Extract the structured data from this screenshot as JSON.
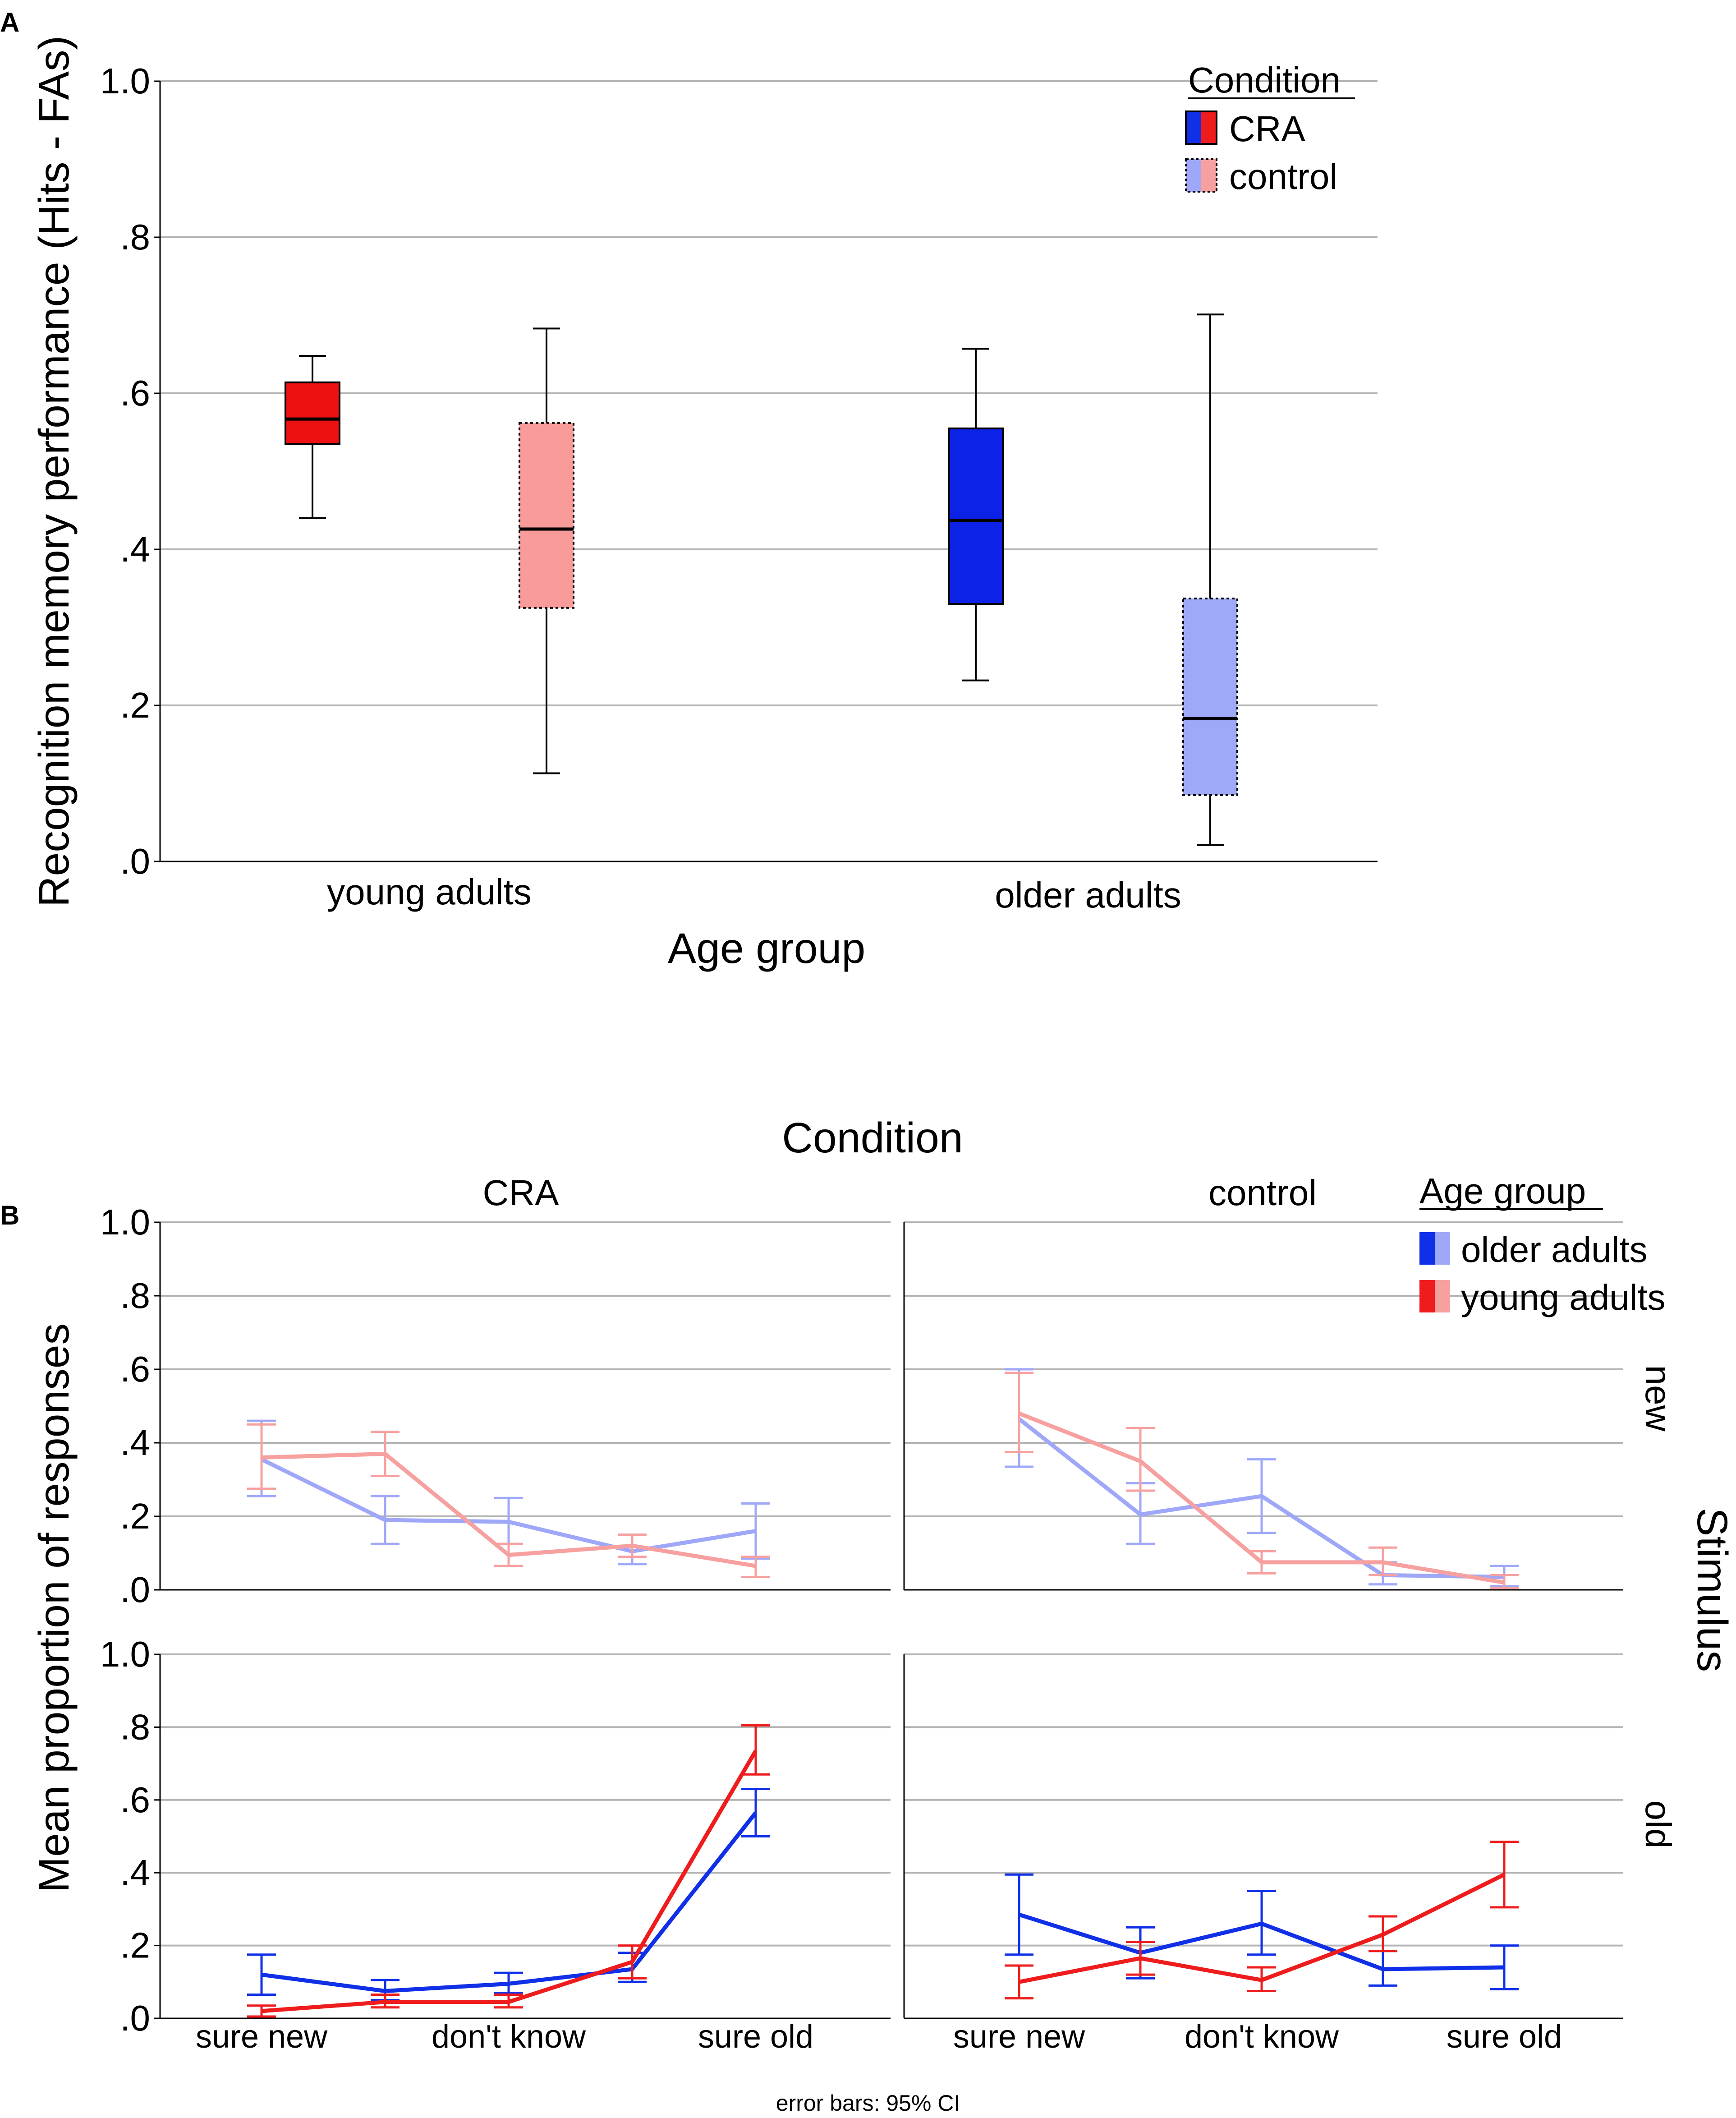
{
  "chart_data": [
    {
      "panel": "A",
      "type": "boxplot",
      "ylabel": "Recognition memory performance (Hits - FAs)",
      "xlabel": "Age group",
      "ylim": [
        0,
        1
      ],
      "yticks": [
        0,
        0.2,
        0.4,
        0.6,
        0.8,
        1.0
      ],
      "ytick_labels": [
        ".0",
        ".2",
        ".4",
        ".6",
        ".8",
        "1.0"
      ],
      "categories": [
        "young adults",
        "older adults"
      ],
      "legend": {
        "title": "Condition",
        "items": [
          {
            "label": "CRA",
            "colors": [
              "#1030e8",
              "#ee1c1c"
            ],
            "style": "solid"
          },
          {
            "label": "control",
            "colors": [
              "#9fa8f8",
              "#f7a0a0"
            ],
            "style": "dotted"
          }
        ]
      },
      "boxes": [
        {
          "group": "young adults",
          "condition": "CRA",
          "color": "#ee1111",
          "style": "solid",
          "min": 0.44,
          "q1": 0.535,
          "median": 0.567,
          "q3": 0.614,
          "max": 0.648
        },
        {
          "group": "young adults",
          "condition": "control",
          "color": "#f99b9b",
          "style": "dotted",
          "min": 0.113,
          "q1": 0.325,
          "median": 0.426,
          "q3": 0.562,
          "max": 0.683
        },
        {
          "group": "older adults",
          "condition": "CRA",
          "color": "#0c22e6",
          "style": "solid",
          "min": 0.232,
          "q1": 0.33,
          "median": 0.437,
          "q3": 0.555,
          "max": 0.657
        },
        {
          "group": "older adults",
          "condition": "control",
          "color": "#9ea9f7",
          "style": "dotted",
          "min": 0.021,
          "q1": 0.085,
          "median": 0.183,
          "q3": 0.337,
          "max": 0.701
        }
      ]
    },
    {
      "panel": "B",
      "type": "line",
      "column_title": "Condition",
      "row_title": "Stimulus",
      "ylabel": "Mean proportion of responses",
      "ylim": [
        0,
        1
      ],
      "yticks": [
        0,
        0.2,
        0.4,
        0.6,
        0.8,
        1.0
      ],
      "ytick_labels": [
        ".0",
        ".2",
        ".4",
        ".6",
        ".8",
        "1.0"
      ],
      "x": [
        "sure new",
        "",
        "don't know",
        "",
        "sure old"
      ],
      "x_tick_labels": [
        "sure new",
        "don't know",
        "sure old"
      ],
      "legend": {
        "title": "Age group",
        "items": [
          {
            "label": "older adults",
            "colors": [
              "#1030e8",
              "#9fa8f8"
            ]
          },
          {
            "label": "young adults",
            "colors": [
              "#ee1c1c",
              "#f7a0a0"
            ]
          }
        ]
      },
      "footnote": "error bars: 95% CI",
      "panels": [
        {
          "condition": "CRA",
          "stimulus": "new",
          "series": [
            {
              "name": "older adults",
              "color": "#9fa8f8",
              "values": [
                0.355,
                0.19,
                0.185,
                0.105,
                0.16
              ],
              "ci_low": [
                0.255,
                0.125,
                0.125,
                0.07,
                0.085
              ],
              "ci_high": [
                0.46,
                0.255,
                0.25,
                0.15,
                0.235
              ]
            },
            {
              "name": "young adults",
              "color": "#f7a0a0",
              "values": [
                0.36,
                0.37,
                0.095,
                0.12,
                0.065
              ],
              "ci_low": [
                0.275,
                0.31,
                0.065,
                0.09,
                0.035
              ],
              "ci_high": [
                0.45,
                0.43,
                0.125,
                0.15,
                0.09
              ]
            }
          ]
        },
        {
          "condition": "control",
          "stimulus": "new",
          "series": [
            {
              "name": "older adults",
              "color": "#9fa8f8",
              "values": [
                0.465,
                0.205,
                0.255,
                0.04,
                0.035
              ],
              "ci_low": [
                0.335,
                0.125,
                0.155,
                0.015,
                0.01
              ],
              "ci_high": [
                0.6,
                0.29,
                0.355,
                0.075,
                0.065
              ]
            },
            {
              "name": "young adults",
              "color": "#f7a0a0",
              "values": [
                0.48,
                0.35,
                0.075,
                0.075,
                0.02
              ],
              "ci_low": [
                0.375,
                0.27,
                0.045,
                0.04,
                0.005
              ],
              "ci_high": [
                0.59,
                0.44,
                0.105,
                0.115,
                0.04
              ]
            }
          ]
        },
        {
          "condition": "CRA",
          "stimulus": "old",
          "series": [
            {
              "name": "older adults",
              "color": "#1030e8",
              "values": [
                0.12,
                0.075,
                0.095,
                0.135,
                0.565
              ],
              "ci_low": [
                0.065,
                0.05,
                0.07,
                0.1,
                0.5
              ],
              "ci_high": [
                0.175,
                0.105,
                0.125,
                0.18,
                0.63
              ]
            },
            {
              "name": "young adults",
              "color": "#ee1c1c",
              "values": [
                0.02,
                0.045,
                0.045,
                0.155,
                0.735
              ],
              "ci_low": [
                0.005,
                0.03,
                0.03,
                0.11,
                0.67
              ],
              "ci_high": [
                0.035,
                0.065,
                0.065,
                0.2,
                0.805
              ]
            }
          ]
        },
        {
          "condition": "control",
          "stimulus": "old",
          "series": [
            {
              "name": "older adults",
              "color": "#1030e8",
              "values": [
                0.285,
                0.18,
                0.26,
                0.135,
                0.14
              ],
              "ci_low": [
                0.175,
                0.11,
                0.175,
                0.09,
                0.08
              ],
              "ci_high": [
                0.395,
                0.25,
                0.35,
                0.185,
                0.2
              ]
            },
            {
              "name": "young adults",
              "color": "#ee1c1c",
              "values": [
                0.1,
                0.165,
                0.105,
                0.23,
                0.395
              ],
              "ci_low": [
                0.055,
                0.12,
                0.075,
                0.185,
                0.305
              ],
              "ci_high": [
                0.145,
                0.21,
                0.14,
                0.28,
                0.485
              ]
            }
          ]
        }
      ]
    }
  ],
  "labels": {
    "panel_a": "A",
    "panel_b": "B",
    "col_cra": "CRA",
    "col_control": "control",
    "row_new": "new",
    "row_old": "old"
  }
}
